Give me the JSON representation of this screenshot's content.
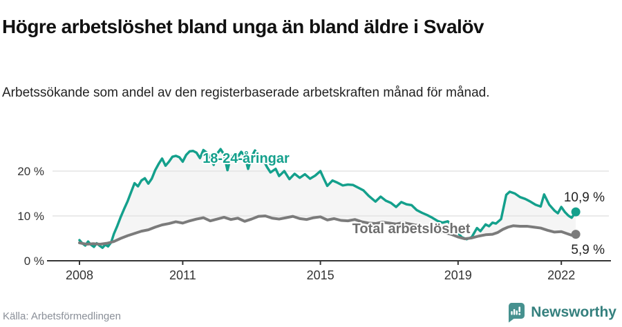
{
  "header": {
    "title": "Högre arbetslöshet bland unga än bland äldre i Svalöv",
    "subtitle": "Arbetssökande som andel av den registerbaserade arbetskraften månad för månad."
  },
  "footer": {
    "source": "Källa: Arbetsförmedlingen",
    "brand": "Newsworthy"
  },
  "colors": {
    "young": "#14a08c",
    "total": "#7b7b7b",
    "total_label": "#6e6e6e",
    "grid": "#e4e4e4",
    "axis": "#333333",
    "band_fill": "rgba(0,0,0,0.04)",
    "value_label": "#222222",
    "brand_icon": "#46918f",
    "brand_text": "#35807e"
  },
  "chart_data": {
    "type": "line",
    "title": "Högre arbetslöshet bland unga än bland äldre i Svalöv",
    "subtitle": "Arbetssökande som andel av den registerbaserade arbetskraften månad för månad.",
    "unit": "%",
    "xlabel": "",
    "ylabel": "",
    "xlim": [
      2007.9,
      2022.6
    ],
    "ylim": [
      0,
      27
    ],
    "grid": "horizontal",
    "legend_position": "inline-labels",
    "xticks": [
      2008,
      2011,
      2015,
      2019,
      2022
    ],
    "yticks": [
      {
        "value": 0,
        "label": "0 %"
      },
      {
        "value": 10,
        "label": "10 %"
      },
      {
        "value": 20,
        "label": "20 %"
      }
    ],
    "series": [
      {
        "id": "young",
        "name": "18-24-åringar",
        "color": "#14a08c",
        "label_color": "#14a08c",
        "end_label": "10,9 %",
        "end_value": 10.9,
        "points": [
          [
            2008.0,
            4.6
          ],
          [
            2008.08,
            3.9
          ],
          [
            2008.17,
            3.4
          ],
          [
            2008.25,
            4.3
          ],
          [
            2008.33,
            3.6
          ],
          [
            2008.42,
            3.1
          ],
          [
            2008.5,
            3.9
          ],
          [
            2008.58,
            3.4
          ],
          [
            2008.67,
            2.9
          ],
          [
            2008.75,
            3.6
          ],
          [
            2008.83,
            3.2
          ],
          [
            2008.92,
            4.1
          ],
          [
            2009.0,
            6.0
          ],
          [
            2009.1,
            7.8
          ],
          [
            2009.2,
            9.8
          ],
          [
            2009.3,
            11.6
          ],
          [
            2009.4,
            13.3
          ],
          [
            2009.5,
            15.3
          ],
          [
            2009.6,
            17.3
          ],
          [
            2009.7,
            16.6
          ],
          [
            2009.8,
            17.9
          ],
          [
            2009.9,
            18.4
          ],
          [
            2010.0,
            17.2
          ],
          [
            2010.1,
            18.3
          ],
          [
            2010.2,
            20.2
          ],
          [
            2010.3,
            21.6
          ],
          [
            2010.4,
            22.8
          ],
          [
            2010.5,
            21.2
          ],
          [
            2010.6,
            22.1
          ],
          [
            2010.7,
            23.2
          ],
          [
            2010.8,
            23.4
          ],
          [
            2010.9,
            23.1
          ],
          [
            2011.0,
            22.1
          ],
          [
            2011.1,
            23.6
          ],
          [
            2011.2,
            24.4
          ],
          [
            2011.3,
            24.5
          ],
          [
            2011.4,
            24.1
          ],
          [
            2011.5,
            22.9
          ],
          [
            2011.6,
            24.7
          ],
          [
            2011.7,
            24.1
          ],
          [
            2011.8,
            22.9
          ],
          [
            2011.9,
            21.4
          ],
          [
            2012.0,
            23.9
          ],
          [
            2012.1,
            24.9
          ],
          [
            2012.2,
            23.7
          ],
          [
            2012.3,
            20.2
          ],
          [
            2012.4,
            23.3
          ],
          [
            2012.5,
            23.5
          ],
          [
            2012.6,
            23.2
          ],
          [
            2012.7,
            24.3
          ],
          [
            2012.8,
            23.4
          ],
          [
            2012.9,
            20.5
          ],
          [
            2013.0,
            23.2
          ],
          [
            2013.1,
            24.6
          ],
          [
            2013.2,
            23.3
          ],
          [
            2013.3,
            23.1
          ],
          [
            2013.45,
            20.9
          ],
          [
            2013.55,
            19.7
          ],
          [
            2013.7,
            20.5
          ],
          [
            2013.8,
            18.9
          ],
          [
            2013.95,
            20.0
          ],
          [
            2014.1,
            18.2
          ],
          [
            2014.25,
            19.4
          ],
          [
            2014.4,
            18.5
          ],
          [
            2014.55,
            19.3
          ],
          [
            2014.7,
            18.3
          ],
          [
            2014.85,
            19.0
          ],
          [
            2015.0,
            20.0
          ],
          [
            2015.1,
            18.3
          ],
          [
            2015.2,
            16.7
          ],
          [
            2015.35,
            17.9
          ],
          [
            2015.5,
            17.4
          ],
          [
            2015.65,
            16.8
          ],
          [
            2015.8,
            17.0
          ],
          [
            2015.95,
            16.9
          ],
          [
            2016.1,
            16.3
          ],
          [
            2016.25,
            15.7
          ],
          [
            2016.4,
            14.5
          ],
          [
            2016.6,
            13.2
          ],
          [
            2016.75,
            14.3
          ],
          [
            2016.9,
            13.4
          ],
          [
            2017.05,
            12.9
          ],
          [
            2017.2,
            12.0
          ],
          [
            2017.35,
            13.1
          ],
          [
            2017.5,
            12.6
          ],
          [
            2017.65,
            12.4
          ],
          [
            2017.8,
            11.3
          ],
          [
            2017.95,
            10.7
          ],
          [
            2018.1,
            10.2
          ],
          [
            2018.25,
            9.6
          ],
          [
            2018.4,
            8.9
          ],
          [
            2018.55,
            8.5
          ],
          [
            2018.7,
            8.8
          ],
          [
            2018.85,
            7.7
          ],
          [
            2019.0,
            6.2
          ],
          [
            2019.1,
            5.3
          ],
          [
            2019.25,
            4.8
          ],
          [
            2019.4,
            5.3
          ],
          [
            2019.55,
            7.3
          ],
          [
            2019.65,
            6.6
          ],
          [
            2019.8,
            8.1
          ],
          [
            2019.9,
            7.7
          ],
          [
            2020.0,
            8.5
          ],
          [
            2020.1,
            8.3
          ],
          [
            2020.25,
            9.3
          ],
          [
            2020.4,
            14.7
          ],
          [
            2020.5,
            15.4
          ],
          [
            2020.65,
            15.0
          ],
          [
            2020.8,
            14.2
          ],
          [
            2020.95,
            13.8
          ],
          [
            2021.1,
            13.2
          ],
          [
            2021.25,
            12.5
          ],
          [
            2021.4,
            12.1
          ],
          [
            2021.5,
            14.8
          ],
          [
            2021.65,
            12.5
          ],
          [
            2021.8,
            11.2
          ],
          [
            2021.9,
            10.6
          ],
          [
            2022.0,
            12.0
          ],
          [
            2022.1,
            10.9
          ],
          [
            2022.2,
            10.1
          ],
          [
            2022.3,
            9.6
          ],
          [
            2022.42,
            10.9
          ]
        ]
      },
      {
        "id": "total",
        "name": "Total arbetslöshet",
        "color": "#7b7b7b",
        "label_color": "#6e6e6e",
        "end_label": "5,9 %",
        "end_value": 5.9,
        "points": [
          [
            2008.0,
            4.0
          ],
          [
            2008.2,
            3.7
          ],
          [
            2008.4,
            3.8
          ],
          [
            2008.6,
            3.7
          ],
          [
            2008.8,
            3.9
          ],
          [
            2009.0,
            4.3
          ],
          [
            2009.2,
            5.0
          ],
          [
            2009.4,
            5.6
          ],
          [
            2009.6,
            6.1
          ],
          [
            2009.8,
            6.6
          ],
          [
            2010.0,
            6.9
          ],
          [
            2010.2,
            7.5
          ],
          [
            2010.4,
            8.0
          ],
          [
            2010.6,
            8.3
          ],
          [
            2010.8,
            8.7
          ],
          [
            2011.0,
            8.4
          ],
          [
            2011.2,
            8.9
          ],
          [
            2011.4,
            9.3
          ],
          [
            2011.6,
            9.6
          ],
          [
            2011.8,
            8.9
          ],
          [
            2012.0,
            9.3
          ],
          [
            2012.2,
            9.7
          ],
          [
            2012.4,
            9.2
          ],
          [
            2012.6,
            9.5
          ],
          [
            2012.8,
            8.8
          ],
          [
            2013.0,
            9.3
          ],
          [
            2013.2,
            9.9
          ],
          [
            2013.4,
            10.0
          ],
          [
            2013.6,
            9.5
          ],
          [
            2013.8,
            9.3
          ],
          [
            2014.0,
            9.6
          ],
          [
            2014.2,
            9.9
          ],
          [
            2014.4,
            9.4
          ],
          [
            2014.6,
            9.2
          ],
          [
            2014.8,
            9.6
          ],
          [
            2015.0,
            9.8
          ],
          [
            2015.2,
            9.1
          ],
          [
            2015.4,
            9.4
          ],
          [
            2015.6,
            9.0
          ],
          [
            2015.8,
            8.9
          ],
          [
            2016.0,
            9.2
          ],
          [
            2016.2,
            8.7
          ],
          [
            2016.4,
            8.4
          ],
          [
            2016.6,
            8.3
          ],
          [
            2016.8,
            8.6
          ],
          [
            2017.0,
            8.4
          ],
          [
            2017.2,
            8.2
          ],
          [
            2017.4,
            8.5
          ],
          [
            2017.6,
            8.2
          ],
          [
            2017.8,
            7.9
          ],
          [
            2018.0,
            7.6
          ],
          [
            2018.2,
            7.2
          ],
          [
            2018.4,
            6.7
          ],
          [
            2018.6,
            6.3
          ],
          [
            2018.8,
            5.9
          ],
          [
            2019.0,
            5.3
          ],
          [
            2019.2,
            4.9
          ],
          [
            2019.4,
            5.1
          ],
          [
            2019.6,
            5.5
          ],
          [
            2019.8,
            5.8
          ],
          [
            2020.0,
            5.9
          ],
          [
            2020.15,
            6.3
          ],
          [
            2020.3,
            7.0
          ],
          [
            2020.45,
            7.5
          ],
          [
            2020.6,
            7.8
          ],
          [
            2020.8,
            7.7
          ],
          [
            2021.0,
            7.7
          ],
          [
            2021.2,
            7.5
          ],
          [
            2021.4,
            7.3
          ],
          [
            2021.6,
            6.8
          ],
          [
            2021.8,
            6.4
          ],
          [
            2022.0,
            6.5
          ],
          [
            2022.15,
            6.1
          ],
          [
            2022.3,
            5.7
          ],
          [
            2022.42,
            5.9
          ]
        ]
      }
    ]
  }
}
